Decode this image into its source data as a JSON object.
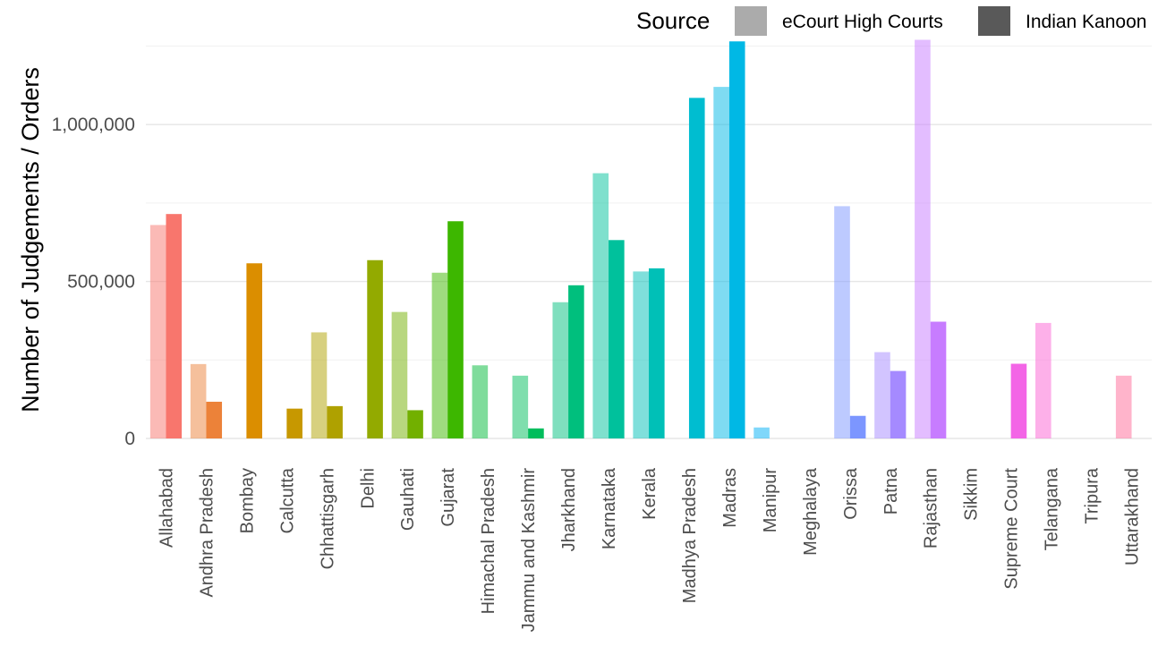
{
  "chart_data": {
    "type": "bar",
    "title": "",
    "xlabel": "",
    "ylabel": "Number of Judgements / Orders",
    "ylim": [
      0,
      1260000
    ],
    "yticks": [
      0,
      500000,
      1000000
    ],
    "ytick_labels": [
      "0",
      "500,000",
      "1,000,000"
    ],
    "grid": true,
    "legend": {
      "title": "Source",
      "placement": "top-right",
      "entries": [
        {
          "label": "eCourt High Courts",
          "swatch_color": "#ababab"
        },
        {
          "label": "Indian Kanoon",
          "swatch_color": "#595959"
        }
      ]
    },
    "categories": [
      "Allahabad",
      "Andhra Pradesh",
      "Bombay",
      "Calcutta",
      "Chhattisgarh",
      "Delhi",
      "Gauhati",
      "Gujarat",
      "Himachal Pradesh",
      "Jammu and Kashmir",
      "Jharkhand",
      "Karnataka",
      "Kerala",
      "Madhya Pradesh",
      "Madras",
      "Manipur",
      "Meghalaya",
      "Orissa",
      "Patna",
      "Rajasthan",
      "Sikkim",
      "Supreme Court",
      "Telangana",
      "Tripura",
      "Uttarakhand"
    ],
    "colors": [
      "#F8766D",
      "#EC8239",
      "#DB8E00",
      "#C79800",
      "#AFA100",
      "#93AA00",
      "#72B000",
      "#3DB700",
      "#00BA38",
      "#00BD5C",
      "#00BF7D",
      "#00C19C",
      "#00C0B7",
      "#00BDD0",
      "#00B8E5",
      "#00B0F6",
      "#00A5FF",
      "#7C96FF",
      "#A58AFF",
      "#C77CFF",
      "#E26EF7",
      "#F365E6",
      "#FC61D4",
      "#FF62BC",
      "#FF6A98"
    ],
    "series": [
      {
        "name": "eCourt High Courts",
        "opacity": 0.5,
        "values": [
          680000,
          237000,
          null,
          null,
          338000,
          null,
          403000,
          528000,
          233000,
          200000,
          434000,
          845000,
          532000,
          null,
          1120000,
          35000,
          null,
          740000,
          275000,
          1270000,
          null,
          null,
          368000,
          null,
          200000
        ]
      },
      {
        "name": "Indian Kanoon",
        "opacity": 1.0,
        "values": [
          715000,
          117000,
          558000,
          95000,
          103000,
          568000,
          90000,
          692000,
          null,
          32000,
          488000,
          632000,
          542000,
          1085000,
          1265000,
          null,
          null,
          72000,
          215000,
          372000,
          null,
          238000,
          null,
          null,
          null
        ]
      }
    ]
  }
}
